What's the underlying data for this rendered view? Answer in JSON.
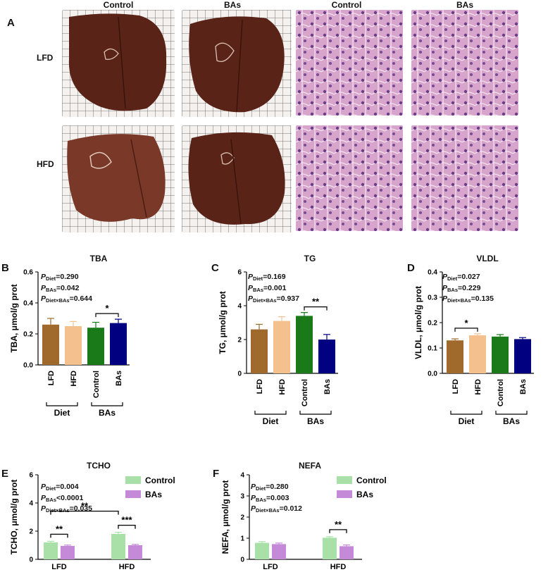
{
  "panel_a": {
    "letter": "A",
    "columns": [
      "Control",
      "BAs",
      "Control",
      "BAs"
    ],
    "rows": [
      "LFD",
      "HFD"
    ]
  },
  "panel_b": {
    "letter": "B",
    "title": "TBA",
    "ylabel": "TBA, μmol/g prot",
    "stats": [
      "=0.290",
      "=0.042",
      "=0.644"
    ],
    "subs": [
      "Diet",
      "BAs",
      "Diet×BAs"
    ],
    "group_labels": [
      "Diet",
      "BAs"
    ],
    "sig": "*"
  },
  "panel_c": {
    "letter": "C",
    "title": "TG",
    "ylabel": "TG, μmol/g prot",
    "stats": [
      "=0.169",
      "=0.001",
      "=0.937"
    ],
    "subs": [
      "Diet",
      "BAs",
      "Diet×BAs"
    ],
    "group_labels": [
      "Diet",
      "BAs"
    ],
    "sig": "**"
  },
  "panel_d": {
    "letter": "D",
    "title": "VLDL",
    "ylabel": "VLDL, μmol/g prot",
    "stats": [
      "=0.027",
      "=0.229",
      "=0.135"
    ],
    "subs": [
      "Diet",
      "BAs",
      "Diet×BAs"
    ],
    "group_labels": [
      "Diet",
      "BAs"
    ],
    "sig": "*"
  },
  "panel_e": {
    "letter": "E",
    "title": "TCHO",
    "ylabel": "TCHO, μmol/g prot",
    "stats": [
      "=0.004",
      "<0.0001",
      "=0.035"
    ],
    "subs": [
      "Diet",
      "BAs",
      "Diet×BAs"
    ],
    "sig": [
      "**",
      "**",
      "***"
    ]
  },
  "panel_f": {
    "letter": "F",
    "title": "NEFA",
    "ylabel": "NEFA, μmol/g prot",
    "stats": [
      "=0.280",
      "=0.003",
      "=0.012"
    ],
    "subs": [
      "Diet",
      "BAs",
      "Diet×BAs"
    ],
    "sig": [
      "**"
    ]
  },
  "colors": {
    "lfd": "#a06a2c",
    "hfd": "#f3c08e",
    "control": "#1a7a1a",
    "bas": "#000080",
    "control_light": "#a8e0a8",
    "bas_light": "#c48ad8",
    "liver": "#5a2318",
    "tissue_bg": "#d9a8cc"
  },
  "chart_data": [
    {
      "type": "bar",
      "title": "TBA",
      "ylabel": "TBA, μmol/g prot",
      "categories": [
        "LFD",
        "HFD",
        "Control",
        "BAs"
      ],
      "values": [
        0.26,
        0.25,
        0.24,
        0.27
      ],
      "errors": [
        0.04,
        0.03,
        0.035,
        0.025
      ],
      "ylim": [
        0,
        0.6
      ],
      "yticks": [
        "0.0",
        "0.2",
        "0.4",
        "0.6"
      ]
    },
    {
      "type": "bar",
      "title": "TG",
      "ylabel": "TG, μmol/g prot",
      "categories": [
        "LFD",
        "HFD",
        "Control",
        "BAs"
      ],
      "values": [
        2.6,
        3.1,
        3.4,
        2.0
      ],
      "errors": [
        0.3,
        0.25,
        0.2,
        0.3
      ],
      "ylim": [
        0,
        6
      ],
      "yticks": [
        "0",
        "2",
        "4",
        "6"
      ]
    },
    {
      "type": "bar",
      "title": "VLDL",
      "ylabel": "VLDL, μmol/g prot",
      "categories": [
        "LFD",
        "HFD",
        "Control",
        "BAs"
      ],
      "values": [
        0.13,
        0.15,
        0.145,
        0.135
      ],
      "errors": [
        0.006,
        0.006,
        0.008,
        0.006
      ],
      "ylim": [
        0,
        0.4
      ],
      "yticks": [
        "0.0",
        "0.1",
        "0.2",
        "0.3",
        "0.4"
      ]
    },
    {
      "type": "bar",
      "title": "TCHO",
      "ylabel": "TCHO, μmol/g prot",
      "categories": [
        "LFD",
        "HFD"
      ],
      "series": [
        {
          "name": "Control",
          "values": [
            1.2,
            1.8
          ],
          "errors": [
            0.08,
            0.12
          ]
        },
        {
          "name": "BAs",
          "values": [
            0.95,
            1.0
          ],
          "errors": [
            0.06,
            0.06
          ]
        }
      ],
      "ylim": [
        0,
        6
      ],
      "yticks": [
        "0",
        "2",
        "4",
        "6"
      ]
    },
    {
      "type": "bar",
      "title": "NEFA",
      "ylabel": "NEFA, μmol/g prot",
      "categories": [
        "LFD",
        "HFD"
      ],
      "series": [
        {
          "name": "Control",
          "values": [
            0.78,
            1.02
          ],
          "errors": [
            0.06,
            0.05
          ]
        },
        {
          "name": "BAs",
          "values": [
            0.72,
            0.62
          ],
          "errors": [
            0.05,
            0.06
          ]
        }
      ],
      "ylim": [
        0,
        4
      ],
      "yticks": [
        "0",
        "1",
        "2",
        "3",
        "4"
      ]
    }
  ]
}
